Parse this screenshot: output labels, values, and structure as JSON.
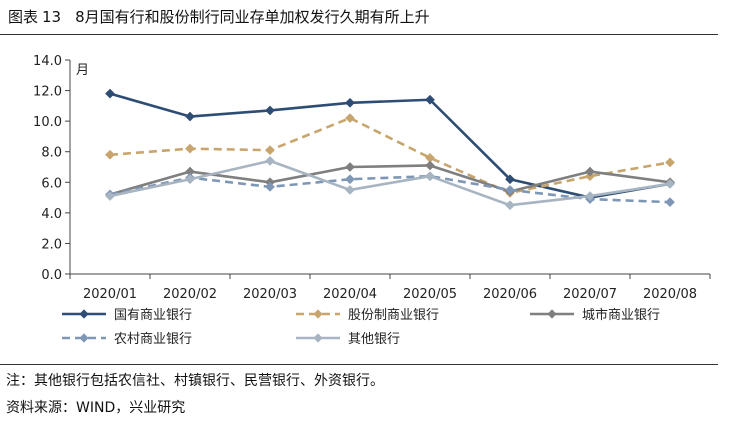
{
  "figure": {
    "label": "图表",
    "number": "13",
    "title": "8月国有行和股份制行同业存单加权发行久期有所上升"
  },
  "note": "注：其他银行包括农信社、村镇银行、民营银行、外资银行。",
  "source": "资料来源：WIND，兴业研究",
  "chart_data": {
    "type": "line",
    "title": "8月国有行和股份制行同业存单加权发行久期有所上升",
    "ylabel": "月",
    "xlabel": "",
    "ylim": [
      0,
      14
    ],
    "yticks": [
      0,
      2,
      4,
      6,
      8,
      10,
      12,
      14
    ],
    "ytick_labels": [
      "0.0",
      "2.0",
      "4.0",
      "6.0",
      "8.0",
      "10.0",
      "12.0",
      "14.0"
    ],
    "categories": [
      "2020/01",
      "2020/02",
      "2020/03",
      "2020/04",
      "2020/05",
      "2020/06",
      "2020/07",
      "2020/08"
    ],
    "legend_position": "bottom",
    "series": [
      {
        "name": "国有商业银行",
        "values": [
          11.8,
          10.3,
          10.7,
          11.2,
          11.4,
          6.2,
          5.0,
          5.9
        ],
        "color": "#2e4d74",
        "style": "solid"
      },
      {
        "name": "股份制商业银行",
        "values": [
          7.8,
          8.2,
          8.1,
          10.2,
          7.6,
          5.3,
          6.4,
          7.3
        ],
        "color": "#c9a56e",
        "style": "dashed"
      },
      {
        "name": "城市商业银行",
        "values": [
          5.2,
          6.7,
          6.0,
          7.0,
          7.1,
          5.4,
          6.7,
          6.0
        ],
        "color": "#7f7f7f",
        "style": "solid"
      },
      {
        "name": "农村商业银行",
        "values": [
          5.2,
          6.3,
          5.7,
          6.2,
          6.4,
          5.5,
          4.9,
          4.7
        ],
        "color": "#7f97b6",
        "style": "dashed"
      },
      {
        "name": "其他银行",
        "values": [
          5.1,
          6.2,
          7.4,
          5.5,
          6.4,
          4.5,
          5.1,
          5.9
        ],
        "color": "#a7b4c2",
        "style": "solid"
      }
    ]
  }
}
